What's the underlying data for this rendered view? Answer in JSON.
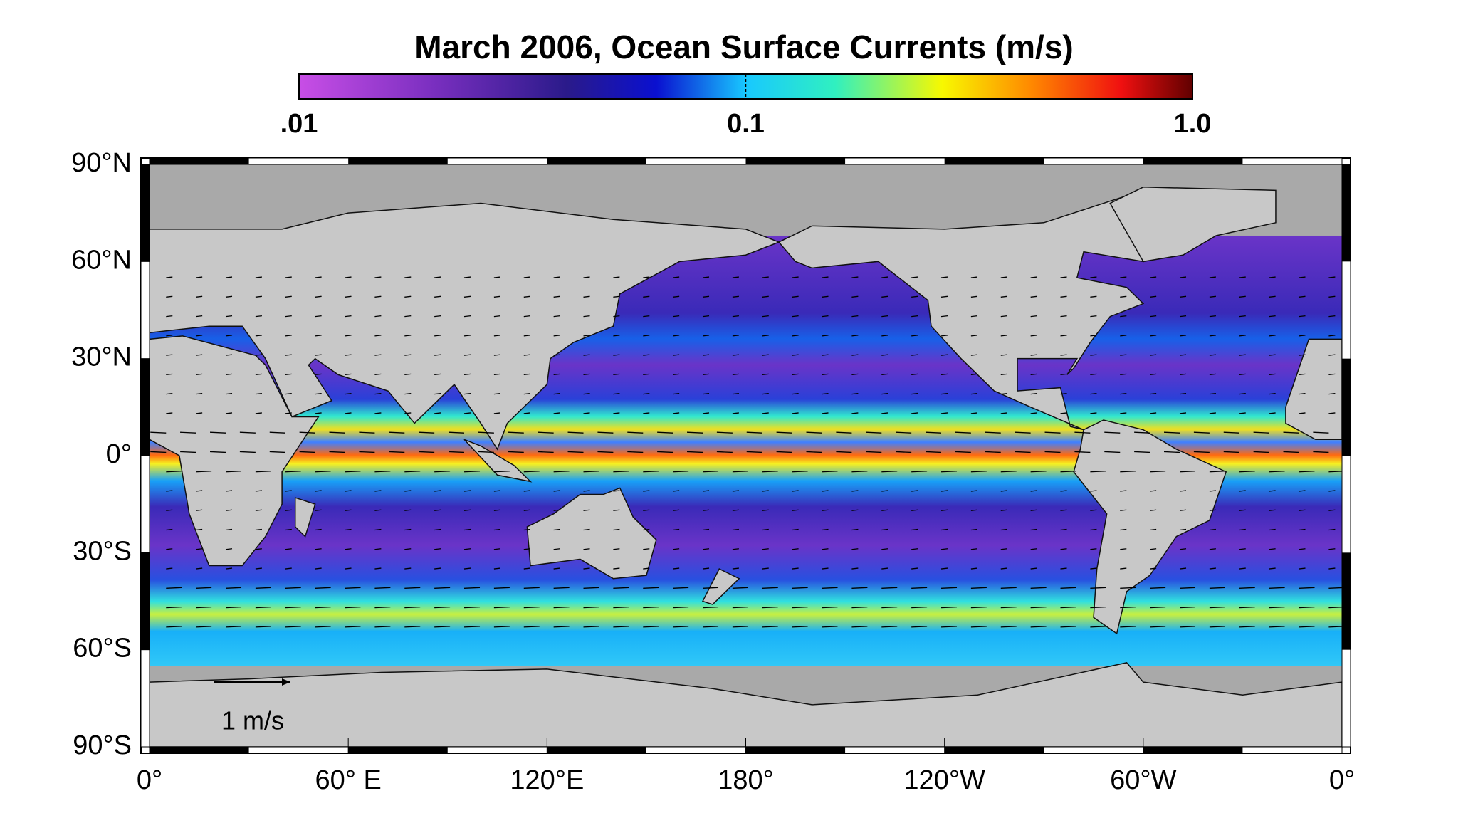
{
  "title": "March 2006, Ocean Surface Currents  (m/s)",
  "colorbar": {
    "scale": "log",
    "lim": [
      0.01,
      1
    ],
    "ticks": [
      {
        "value": 0.01,
        "label": ".01"
      },
      {
        "value": 0.1,
        "label": "0.1"
      },
      {
        "value": 1,
        "label": "1.0"
      }
    ]
  },
  "map": {
    "lat_ticks": [
      {
        "value": 90,
        "label": "90°N"
      },
      {
        "value": 60,
        "label": "60°N"
      },
      {
        "value": 30,
        "label": "30°N"
      },
      {
        "value": 0,
        "label": "0°"
      },
      {
        "value": -30,
        "label": "30°S"
      },
      {
        "value": -60,
        "label": "60°S"
      },
      {
        "value": -90,
        "label": "90°S"
      }
    ],
    "lon_ticks": [
      {
        "value": 0,
        "label": "0°"
      },
      {
        "value": 60,
        "label": "60° E"
      },
      {
        "value": 120,
        "label": "120°E"
      },
      {
        "value": 180,
        "label": "180°"
      },
      {
        "value": 240,
        "label": "120°W"
      },
      {
        "value": 300,
        "label": "60°W"
      },
      {
        "value": 360,
        "label": "0°"
      }
    ],
    "scale_label": "1 m/s"
  }
}
